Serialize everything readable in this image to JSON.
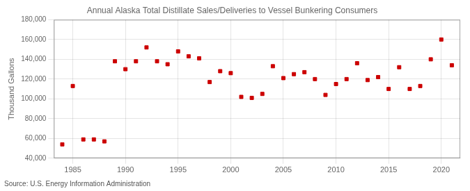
{
  "chart_data": {
    "type": "scatter",
    "title": "Annual Alaska Total Distillate Sales/Deliveries to Vessel Bunkering Consumers",
    "ylabel": "Thousand Gallons",
    "annotation": "Source: U.S. Energy Information Administration",
    "x": [
      1984,
      1985,
      1986,
      1987,
      1988,
      1989,
      1990,
      1991,
      1992,
      1993,
      1994,
      1995,
      1996,
      1997,
      1998,
      1999,
      2000,
      2001,
      2002,
      2003,
      2004,
      2005,
      2006,
      2007,
      2008,
      2009,
      2010,
      2011,
      2012,
      2013,
      2014,
      2015,
      2016,
      2017,
      2018,
      2019,
      2020,
      2021
    ],
    "values": [
      54000,
      113000,
      59000,
      59000,
      57000,
      138000,
      130000,
      138000,
      152000,
      138000,
      135000,
      148000,
      143000,
      141000,
      117000,
      128000,
      126000,
      102000,
      101000,
      105000,
      133000,
      121000,
      125000,
      127000,
      120000,
      104000,
      115000,
      120000,
      136000,
      119000,
      122000,
      110000,
      132000,
      110000,
      113000,
      140000,
      160000,
      134000
    ],
    "color": "#CC0000",
    "marker": "square",
    "xlim": [
      1983.2,
      2021.8
    ],
    "xticks": [
      1985,
      1990,
      1995,
      2000,
      2005,
      2010,
      2015,
      2020
    ],
    "ylim": [
      40000,
      180000
    ],
    "yticks": [
      {
        "value": 40000,
        "label": "40,000"
      },
      {
        "value": 60000,
        "label": "60,000"
      },
      {
        "value": 80000,
        "label": "80,000"
      },
      {
        "value": 100000,
        "label": "100,000"
      },
      {
        "value": 120000,
        "label": "120,000"
      },
      {
        "value": 140000,
        "label": "140,000"
      },
      {
        "value": 160000,
        "label": "160,000"
      },
      {
        "value": 180000,
        "label": "180,000"
      }
    ],
    "grid": true
  }
}
